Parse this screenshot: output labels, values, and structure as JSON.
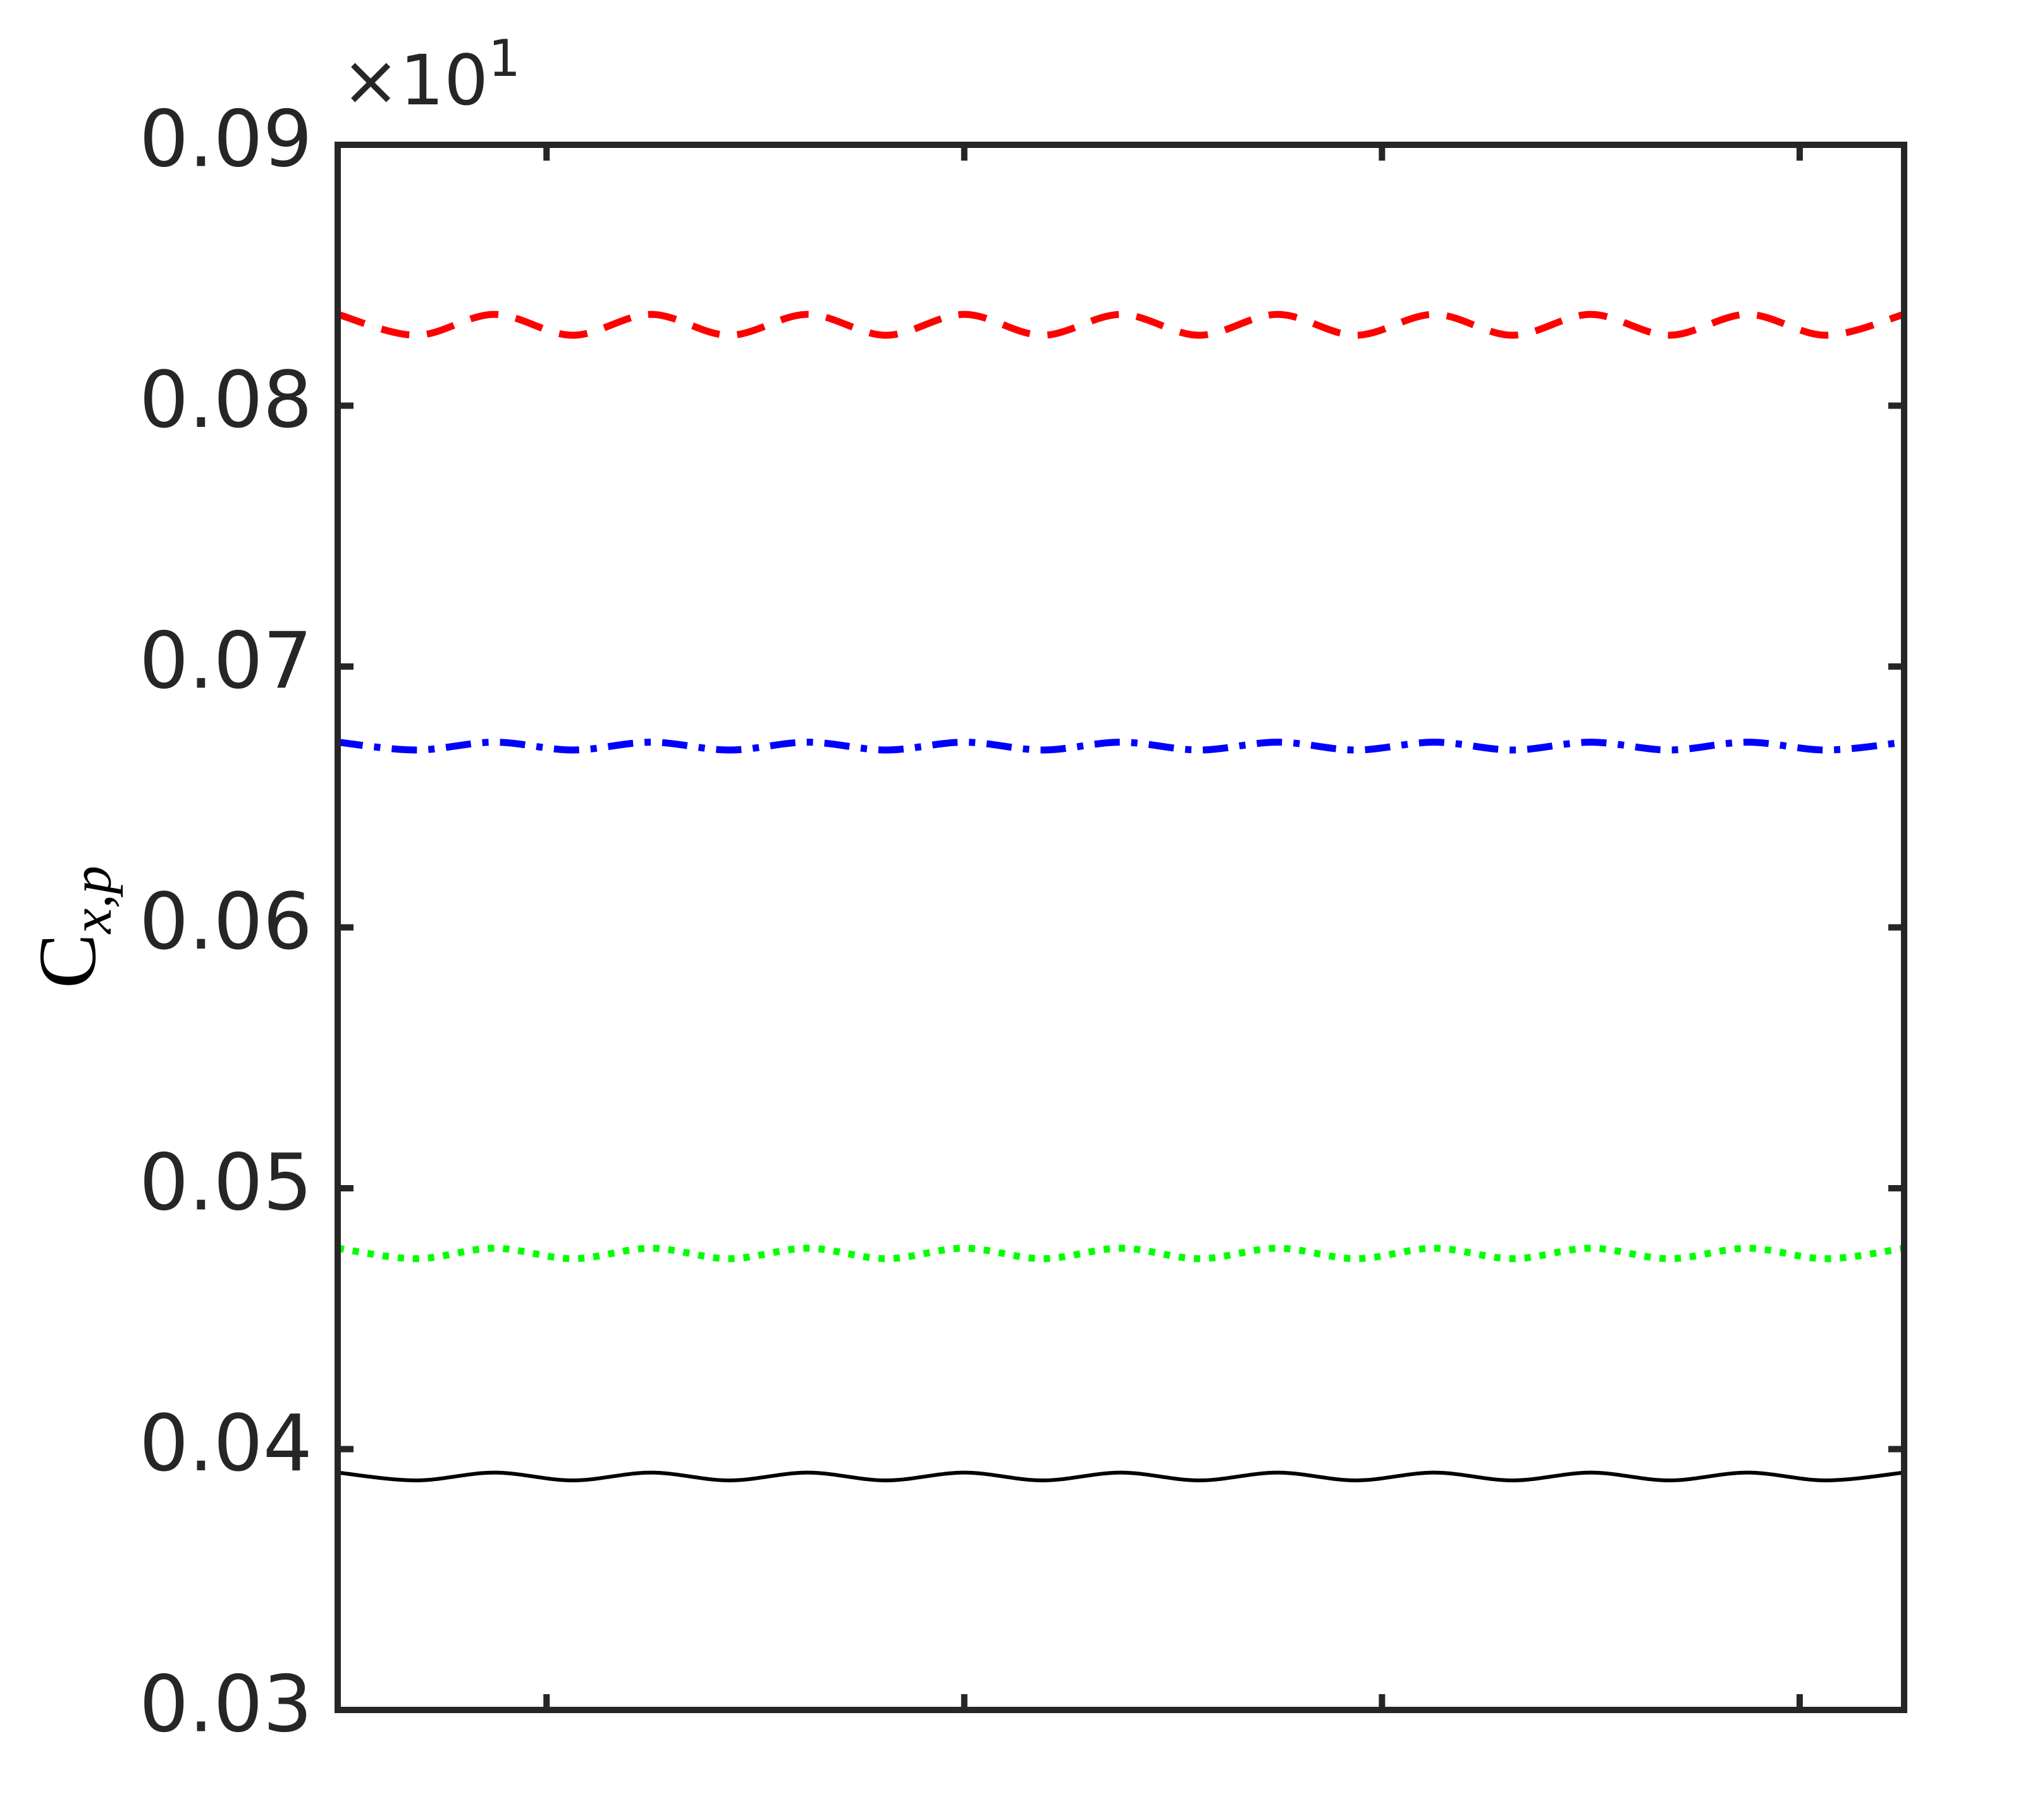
{
  "chart_data": {
    "type": "line",
    "ylabel": "C",
    "ylabel_subscript": "x,p",
    "y_multiplier": "×10",
    "y_multiplier_exponent": "1",
    "x": [
      0,
      0.75,
      1.5,
      2.25,
      3,
      3.75,
      4.5,
      5.25,
      6,
      6.75,
      7.5,
      8.25,
      9,
      9.75,
      10.5,
      11.25,
      12,
      12.75,
      13.5,
      14.25,
      15
    ],
    "series": [
      {
        "color": "#ff0000",
        "dash": "dashed",
        "values": [
          0.0835,
          0.0827,
          0.0835,
          0.0827,
          0.0835,
          0.0827,
          0.0835,
          0.0827,
          0.0835,
          0.0827,
          0.0835,
          0.0827,
          0.0835,
          0.0827,
          0.0835,
          0.0827,
          0.0835,
          0.0827,
          0.0835,
          0.0827,
          0.0835
        ]
      },
      {
        "color": "#0000ff",
        "dash": "dashdot",
        "values": [
          0.0671,
          0.0668,
          0.0671,
          0.0668,
          0.0671,
          0.0668,
          0.0671,
          0.0668,
          0.0671,
          0.0668,
          0.0671,
          0.0668,
          0.0671,
          0.0668,
          0.0671,
          0.0668,
          0.0671,
          0.0668,
          0.0671,
          0.0668,
          0.0671
        ]
      },
      {
        "color": "#00ff00",
        "dash": "dotted",
        "values": [
          0.0477,
          0.0473,
          0.0477,
          0.0473,
          0.0477,
          0.0473,
          0.0477,
          0.0473,
          0.0477,
          0.0473,
          0.0477,
          0.0473,
          0.0477,
          0.0473,
          0.0477,
          0.0473,
          0.0477,
          0.0473,
          0.0477,
          0.0473,
          0.0477
        ]
      },
      {
        "color": "#000000",
        "dash": "solid",
        "values": [
          0.0391,
          0.0388,
          0.0391,
          0.0388,
          0.0391,
          0.0388,
          0.0391,
          0.0388,
          0.0391,
          0.0388,
          0.0391,
          0.0388,
          0.0391,
          0.0388,
          0.0391,
          0.0388,
          0.0391,
          0.0388,
          0.0391,
          0.0388,
          0.0391
        ]
      }
    ],
    "xlim": [
      0,
      15
    ],
    "xticks": [
      2,
      6,
      10,
      14
    ],
    "ylim": [
      0.03,
      0.09
    ],
    "yticks": [
      0.03,
      0.04,
      0.05,
      0.06,
      0.07,
      0.08,
      0.09
    ]
  }
}
